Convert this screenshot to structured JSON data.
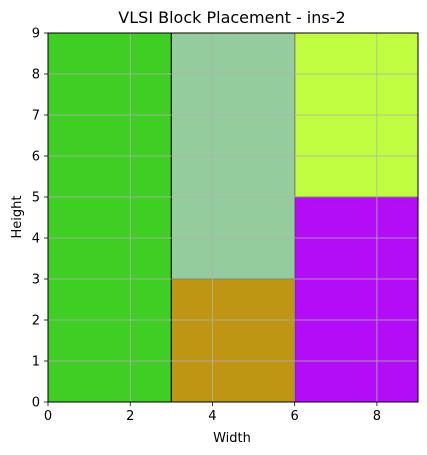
{
  "chart_data": {
    "type": "rectangles",
    "title": "VLSI Block Placement - ins-2",
    "xlabel": "Width",
    "ylabel": "Height",
    "xlim": [
      0,
      9
    ],
    "ylim": [
      0,
      9
    ],
    "xticks": [
      0,
      2,
      4,
      6,
      8
    ],
    "yticks": [
      0,
      1,
      2,
      3,
      4,
      5,
      6,
      7,
      8,
      9
    ],
    "grid": true,
    "blocks": [
      {
        "x": 0,
        "y": 0,
        "w": 3,
        "h": 9,
        "color": "#3fce24"
      },
      {
        "x": 3,
        "y": 3,
        "w": 3,
        "h": 6,
        "color": "#94cc9e"
      },
      {
        "x": 3,
        "y": 0,
        "w": 3,
        "h": 3,
        "color": "#bf9514"
      },
      {
        "x": 6,
        "y": 5,
        "w": 3,
        "h": 4,
        "color": "#c0fd41"
      },
      {
        "x": 6,
        "y": 0,
        "w": 3,
        "h": 5,
        "color": "#b30df7"
      }
    ]
  }
}
